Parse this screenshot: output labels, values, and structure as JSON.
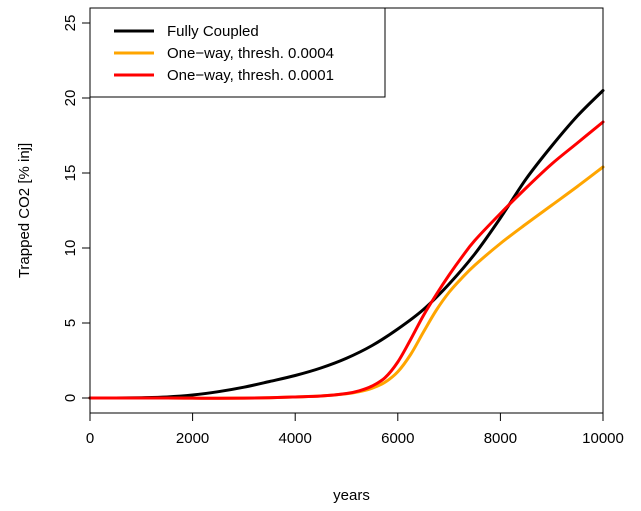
{
  "chart_data": {
    "type": "line",
    "title": "",
    "xlabel": "years",
    "ylabel": "Trapped CO2 [% inj]",
    "xlim": [
      0,
      10000
    ],
    "ylim": [
      -1,
      26
    ],
    "xticks": [
      0,
      2000,
      4000,
      6000,
      8000,
      10000
    ],
    "yticks": [
      0,
      5,
      10,
      15,
      20,
      25
    ],
    "grid": false,
    "legend_position": "top-left",
    "series": [
      {
        "name": "Fully Coupled",
        "color": "#000000",
        "x": [
          0,
          500,
          1000,
          1500,
          2000,
          2500,
          3000,
          3500,
          4000,
          4500,
          5000,
          5500,
          6000,
          6500,
          7000,
          7500,
          8000,
          8500,
          9000,
          9500,
          10000
        ],
        "y": [
          0,
          0,
          0.02,
          0.07,
          0.2,
          0.42,
          0.72,
          1.1,
          1.5,
          2.0,
          2.65,
          3.5,
          4.6,
          5.9,
          7.6,
          9.6,
          12.0,
          14.6,
          16.8,
          18.8,
          20.5
        ]
      },
      {
        "name": "One−way, thresh. 0.0004",
        "color": "#FFA500",
        "x": [
          0,
          500,
          1000,
          1500,
          2000,
          2500,
          3000,
          3500,
          4000,
          4500,
          5000,
          5250,
          5500,
          5750,
          6000,
          6250,
          6500,
          6750,
          7000,
          7250,
          7500,
          8000,
          8500,
          9000,
          9500,
          10000
        ],
        "y": [
          0,
          0,
          0,
          0,
          -0.01,
          -0.02,
          -0.01,
          0.02,
          0.07,
          0.13,
          0.28,
          0.42,
          0.65,
          1.05,
          1.75,
          2.9,
          4.4,
          5.85,
          7.05,
          8.0,
          8.85,
          10.3,
          11.6,
          12.85,
          14.1,
          15.4
        ]
      },
      {
        "name": "One−way, thresh. 0.0001",
        "color": "#FF0000",
        "x": [
          0,
          500,
          1000,
          1500,
          2000,
          2500,
          3000,
          3500,
          4000,
          4500,
          5000,
          5250,
          5500,
          5750,
          6000,
          6250,
          6500,
          6750,
          7000,
          7250,
          7500,
          8000,
          8500,
          9000,
          9500,
          10000
        ],
        "y": [
          0,
          0,
          0,
          0,
          -0.01,
          -0.02,
          -0.01,
          0.02,
          0.07,
          0.13,
          0.3,
          0.48,
          0.8,
          1.35,
          2.4,
          3.9,
          5.5,
          6.9,
          8.2,
          9.4,
          10.5,
          12.3,
          14.0,
          15.6,
          17.0,
          18.4
        ]
      }
    ]
  }
}
